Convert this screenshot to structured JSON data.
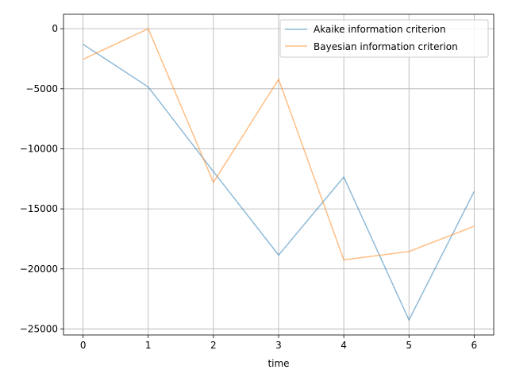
{
  "chart_data": {
    "type": "line",
    "title": "",
    "xlabel": "time",
    "ylabel": "",
    "x": [
      0,
      1,
      2,
      3,
      4,
      5,
      6
    ],
    "xlim": [
      -0.3,
      6.3
    ],
    "ylim": [
      -25500,
      1200
    ],
    "xticks": [
      0,
      1,
      2,
      3,
      4,
      5,
      6
    ],
    "yticks": [
      0,
      -5000,
      -10000,
      -15000,
      -20000,
      -25000
    ],
    "grid": true,
    "legend_position": "top-right",
    "series": [
      {
        "name": "Akaike information criterion",
        "color": "#1f77b4",
        "values": [
          -1300,
          -4850,
          -11900,
          -18850,
          -12350,
          -24250,
          -13550
        ]
      },
      {
        "name": "Bayesian information criterion",
        "color": "#ff7f0e",
        "values": [
          -2550,
          0,
          -12800,
          -4200,
          -19250,
          -18550,
          -16450
        ]
      }
    ]
  }
}
